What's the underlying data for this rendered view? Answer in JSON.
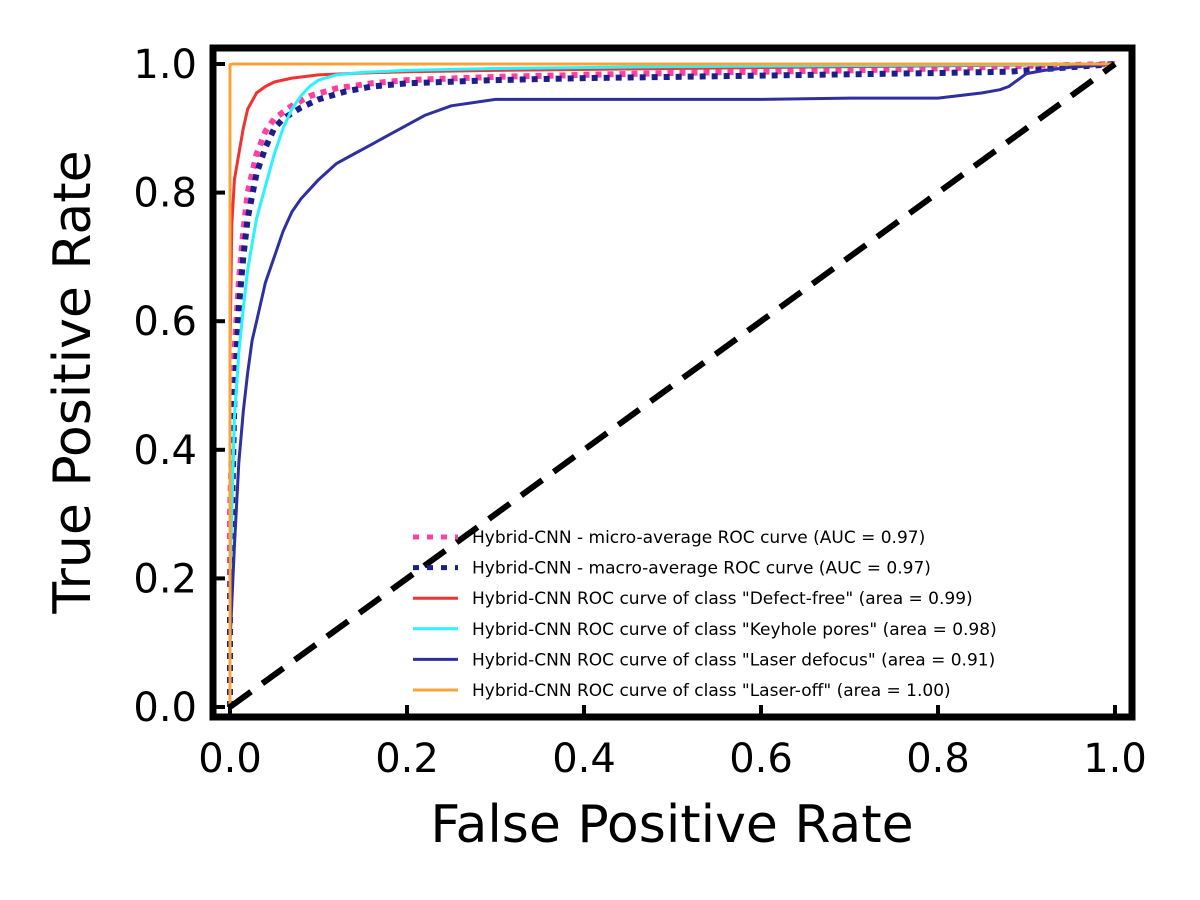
{
  "chart_data": {
    "type": "line",
    "title": "",
    "xlabel": "False Positive Rate",
    "ylabel": "True Positive Rate",
    "xlim": [
      -0.02,
      1.02
    ],
    "ylim": [
      -0.02,
      1.02
    ],
    "xticks": [
      0.0,
      0.2,
      0.4,
      0.6,
      0.8,
      1.0
    ],
    "yticks": [
      0.0,
      0.2,
      0.4,
      0.6,
      0.8,
      1.0
    ],
    "xtick_labels": [
      "0.0",
      "0.2",
      "0.4",
      "0.6",
      "0.8",
      "1.0"
    ],
    "ytick_labels": [
      "0.0",
      "0.2",
      "0.4",
      "0.6",
      "0.8",
      "1.0"
    ],
    "grid": false,
    "legend_position": "lower-right",
    "reference_line": {
      "style": "dashed",
      "color": "#000000",
      "x": [
        0,
        1
      ],
      "y": [
        0,
        1
      ]
    },
    "series": [
      {
        "name": "Hybrid-CNN - micro-average ROC curve (AUC = 0.97)",
        "color": "#ff3fa4",
        "style": "dotted",
        "x": [
          0.0,
          0.0,
          0.005,
          0.01,
          0.015,
          0.02,
          0.03,
          0.04,
          0.05,
          0.07,
          0.09,
          0.12,
          0.16,
          0.2,
          0.3,
          0.4,
          0.5,
          0.6,
          0.7,
          0.8,
          0.9,
          1.0
        ],
        "y": [
          0.0,
          0.3,
          0.55,
          0.66,
          0.74,
          0.8,
          0.86,
          0.895,
          0.915,
          0.935,
          0.95,
          0.962,
          0.97,
          0.975,
          0.98,
          0.983,
          0.986,
          0.988,
          0.99,
          0.993,
          0.997,
          1.0
        ]
      },
      {
        "name": "Hybrid-CNN - macro-average ROC curve (AUC = 0.97)",
        "color": "#1b1f8a",
        "style": "dotted",
        "x": [
          0.0,
          0.0,
          0.005,
          0.01,
          0.015,
          0.02,
          0.03,
          0.04,
          0.05,
          0.06,
          0.08,
          0.1,
          0.13,
          0.16,
          0.2,
          0.3,
          0.4,
          0.5,
          0.6,
          0.7,
          0.8,
          0.88,
          0.9,
          0.95,
          1.0
        ],
        "y": [
          0.0,
          0.15,
          0.48,
          0.62,
          0.7,
          0.76,
          0.83,
          0.87,
          0.9,
          0.915,
          0.932,
          0.945,
          0.957,
          0.965,
          0.97,
          0.975,
          0.978,
          0.98,
          0.982,
          0.984,
          0.986,
          0.988,
          0.99,
          0.995,
          1.0
        ]
      },
      {
        "name": "Hybrid-CNN ROC curve of class \"Defect-free\" (area = 0.99)",
        "color": "#f03232",
        "style": "solid",
        "x": [
          0.0,
          0.0,
          0.002,
          0.005,
          0.01,
          0.015,
          0.02,
          0.03,
          0.04,
          0.05,
          0.07,
          0.1,
          0.15,
          0.2,
          0.3,
          0.5,
          0.7,
          1.0
        ],
        "y": [
          0.0,
          0.55,
          0.75,
          0.82,
          0.86,
          0.9,
          0.93,
          0.955,
          0.965,
          0.972,
          0.978,
          0.983,
          0.986,
          0.988,
          0.99,
          0.993,
          0.996,
          1.0
        ]
      },
      {
        "name": "Hybrid-CNN ROC curve of class \"Keyhole pores\" (area = 0.98)",
        "color": "#2af2ff",
        "style": "solid",
        "x": [
          0.0,
          0.0,
          0.005,
          0.01,
          0.015,
          0.02,
          0.025,
          0.03,
          0.04,
          0.05,
          0.06,
          0.07,
          0.08,
          0.09,
          0.1,
          0.12,
          0.15,
          0.2,
          0.3,
          0.5,
          1.0
        ],
        "y": [
          0.0,
          0.2,
          0.45,
          0.55,
          0.62,
          0.68,
          0.72,
          0.76,
          0.81,
          0.86,
          0.9,
          0.93,
          0.95,
          0.965,
          0.975,
          0.983,
          0.987,
          0.99,
          0.993,
          0.996,
          1.0
        ]
      },
      {
        "name": "Hybrid-CNN ROC curve of class \"Laser defocus\" (area = 0.91)",
        "color": "#2e30a0",
        "style": "solid",
        "x": [
          0.0,
          0.0,
          0.005,
          0.01,
          0.015,
          0.02,
          0.025,
          0.03,
          0.04,
          0.05,
          0.06,
          0.07,
          0.08,
          0.1,
          0.12,
          0.14,
          0.16,
          0.18,
          0.2,
          0.22,
          0.25,
          0.3,
          0.4,
          0.5,
          0.6,
          0.7,
          0.8,
          0.85,
          0.87,
          0.88,
          0.89,
          0.9,
          0.92,
          0.95,
          1.0
        ],
        "y": [
          0.0,
          0.1,
          0.25,
          0.38,
          0.46,
          0.52,
          0.57,
          0.6,
          0.66,
          0.7,
          0.74,
          0.77,
          0.79,
          0.82,
          0.845,
          0.86,
          0.875,
          0.89,
          0.905,
          0.92,
          0.935,
          0.945,
          0.945,
          0.945,
          0.945,
          0.947,
          0.947,
          0.955,
          0.96,
          0.965,
          0.975,
          0.985,
          0.99,
          0.995,
          1.0
        ]
      },
      {
        "name": "Hybrid-CNN ROC curve of class \"Laser-off\" (area = 1.00)",
        "color": "#f9a43a",
        "style": "solid",
        "x": [
          0.0,
          0.0,
          0.003,
          1.0
        ],
        "y": [
          0.0,
          0.999,
          1.0,
          1.0
        ]
      }
    ]
  }
}
